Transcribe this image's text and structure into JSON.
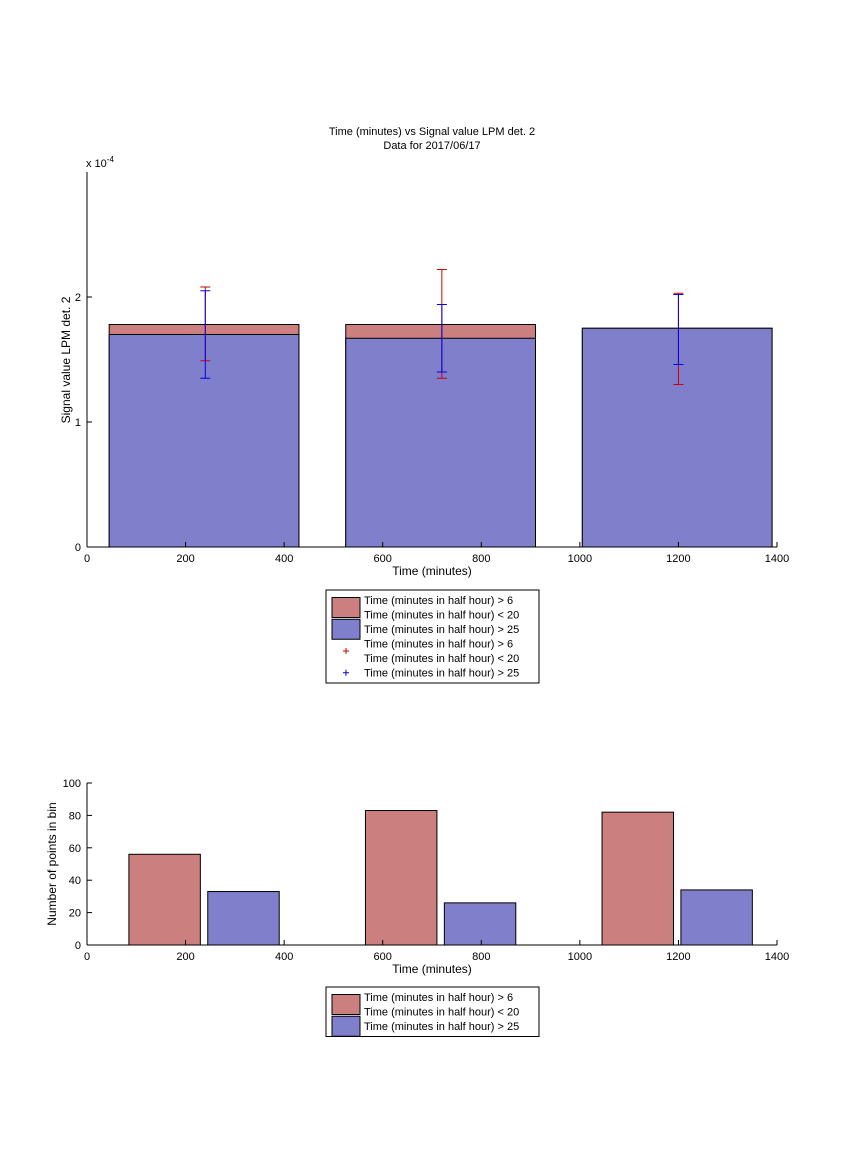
{
  "chart_data": [
    {
      "type": "bar",
      "title": "Time (minutes) vs Signal value LPM det. 2",
      "subtitle": "Data for 2017/06/17",
      "xlabel": "Time (minutes)",
      "ylabel": "Signal value LPM det. 2",
      "y_multiplier_label": "x 10",
      "y_multiplier_exponent": "-4",
      "xlim": [
        0,
        1400
      ],
      "ylim": [
        0,
        3
      ],
      "xticks": [
        "0",
        "200",
        "400",
        "600",
        "800",
        "1000",
        "1200",
        "1400"
      ],
      "yticks": [
        "0",
        "1",
        "2"
      ],
      "bins": [
        [
          45,
          430
        ],
        [
          525,
          910
        ],
        [
          1005,
          1390
        ]
      ],
      "series": [
        {
          "name": "Time (minutes in half hour) > 6\nTime (minutes in half hour) < 20",
          "color": "#cc7f7f",
          "values": [
            1.78,
            1.78,
            1.75
          ]
        },
        {
          "name": "Time (minutes in half hour) > 25",
          "color": "#7f7fcc",
          "values": [
            1.7,
            1.67,
            1.75
          ]
        }
      ],
      "errorbars": [
        {
          "name": "Time (minutes in half hour) > 6\nTime (minutes in half hour) < 20",
          "color": "#cc0000",
          "x": [
            240,
            720,
            1200
          ],
          "low": [
            1.49,
            1.35,
            1.3
          ],
          "high": [
            2.08,
            2.22,
            2.03
          ]
        },
        {
          "name": "Time (minutes in half hour) > 25",
          "color": "#0000ee",
          "x": [
            240,
            720,
            1200
          ],
          "low": [
            1.35,
            1.4,
            1.46
          ],
          "high": [
            2.05,
            1.94,
            2.02
          ]
        }
      ],
      "legend": {
        "position": "below",
        "entries": [
          {
            "kind": "patch",
            "color": "#cc7f7f",
            "lines": [
              "Time (minutes in half hour) > 6",
              "Time (minutes in half hour) < 20"
            ]
          },
          {
            "kind": "patch",
            "color": "#7f7fcc",
            "lines": [
              "Time (minutes in half hour) > 25"
            ]
          },
          {
            "kind": "marker",
            "color": "#cc0000",
            "lines": [
              "Time (minutes in half hour) > 6",
              "Time (minutes in half hour) < 20"
            ]
          },
          {
            "kind": "marker",
            "color": "#0000ee",
            "lines": [
              "Time (minutes in half hour) > 25"
            ]
          }
        ]
      }
    },
    {
      "type": "bar",
      "xlabel": "Time (minutes)",
      "ylabel": "Number of points in bin",
      "xlim": [
        0,
        1400
      ],
      "ylim": [
        0,
        100
      ],
      "xticks": [
        "0",
        "200",
        "400",
        "600",
        "800",
        "1000",
        "1200",
        "1400"
      ],
      "yticks": [
        "0",
        "20",
        "40",
        "60",
        "80",
        "100"
      ],
      "bars": [
        {
          "series": 0,
          "x0": 85,
          "x1": 230,
          "value": 56
        },
        {
          "series": 1,
          "x0": 245,
          "x1": 390,
          "value": 33
        },
        {
          "series": 0,
          "x0": 565,
          "x1": 710,
          "value": 83
        },
        {
          "series": 1,
          "x0": 725,
          "x1": 870,
          "value": 26
        },
        {
          "series": 0,
          "x0": 1045,
          "x1": 1190,
          "value": 82
        },
        {
          "series": 1,
          "x0": 1205,
          "x1": 1350,
          "value": 34
        }
      ],
      "series": [
        {
          "name": "Time (minutes in half hour) > 6\nTime (minutes in half hour) < 20",
          "color": "#cc7f7f"
        },
        {
          "name": "Time (minutes in half hour) > 25",
          "color": "#7f7fcc"
        }
      ],
      "legend": {
        "position": "below",
        "entries": [
          {
            "kind": "patch",
            "color": "#cc7f7f",
            "lines": [
              "Time (minutes in half hour) > 6",
              "Time (minutes in half hour) < 20"
            ]
          },
          {
            "kind": "patch",
            "color": "#7f7fcc",
            "lines": [
              "Time (minutes in half hour) > 25"
            ]
          }
        ]
      }
    }
  ]
}
